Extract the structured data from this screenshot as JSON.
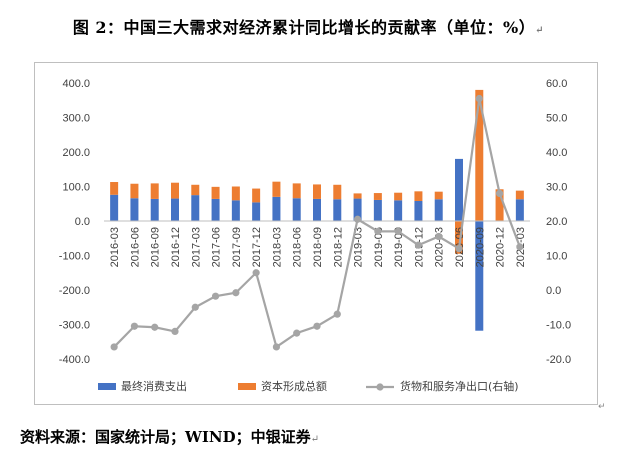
{
  "title": "图 2：中国三大需求对经济累计同比增长的贡献率（单位：%）",
  "source": "资料来源：国家统计局；WIND；中银证券",
  "chart_data": {
    "type": "bar",
    "categories": [
      "2016-03",
      "2016-06",
      "2016-09",
      "2016-12",
      "2017-03",
      "2017-06",
      "2017-09",
      "2017-12",
      "2018-03",
      "2018-06",
      "2018-09",
      "2018-12",
      "2019-03",
      "2019-06",
      "2019-09",
      "2019-12",
      "2020-03",
      "2020-06",
      "2020-09",
      "2020-12",
      "2021-03"
    ],
    "series": [
      {
        "name": "最终消费支出",
        "type": "bar",
        "axis": "left",
        "color": "#4472C4",
        "values": [
          76,
          66,
          64,
          65,
          75,
          64,
          60,
          54,
          70,
          66,
          64,
          63,
          65,
          61,
          60,
          58,
          63,
          180,
          -318,
          0,
          63
        ]
      },
      {
        "name": "资本形成总额",
        "type": "bar",
        "axis": "left",
        "color": "#ED7D31",
        "values": [
          37,
          42,
          45,
          46,
          30,
          35,
          40,
          40,
          44,
          43,
          42,
          42,
          15,
          20,
          22,
          28,
          22,
          -95,
          380,
          92,
          25
        ]
      },
      {
        "name": "货物和服务净出口(右轴)",
        "type": "line",
        "axis": "right",
        "color": "#A5A5A5",
        "values": [
          -16.5,
          -10.5,
          -10.8,
          -12.0,
          -5.0,
          -1.8,
          -0.8,
          5.0,
          -16.5,
          -12.5,
          -10.5,
          -7.0,
          20.5,
          17.0,
          17.0,
          13.0,
          15.5,
          12.0,
          55.5,
          28.0,
          12.5
        ]
      }
    ],
    "y_left": {
      "min": -400,
      "max": 400,
      "ticks": [
        "400.0",
        "300.0",
        "200.0",
        "100.0",
        "0.0",
        "-100.0",
        "-200.0",
        "-300.0",
        "-400.0"
      ]
    },
    "y_right": {
      "min": -20,
      "max": 60,
      "ticks": [
        "60.0",
        "50.0",
        "40.0",
        "30.0",
        "20.0",
        "10.0",
        "0.0",
        "-10.0",
        "-20.0"
      ]
    },
    "legend_position": "bottom",
    "grid": false
  },
  "return_mark": "↵"
}
